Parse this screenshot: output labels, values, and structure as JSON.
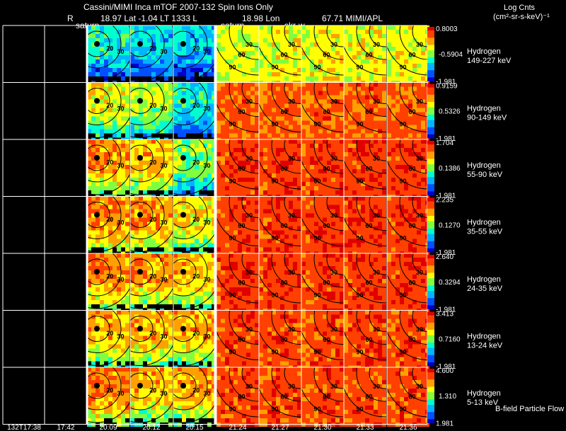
{
  "header": {
    "title_line": "Cassini/MIMI Inca mTOF  2007-132   Spin    Ions Only",
    "info_r": "R",
    "info_lat": "18.97 Lat -1.04 LT 1333 L",
    "info_lon": "18.98 Lon",
    "info_misc": "67.71  MIMI/APL",
    "legend_title": "Log Cnts",
    "legend_units": "(cm²-sr-s-keV)⁻¹"
  },
  "labels": {
    "saturn_1": "saturn",
    "saturn_2": "saturn",
    "skr": "skr-w",
    "footer_flow": "B-field Particle Flow"
  },
  "times": [
    "132T17:38",
    "17:42",
    "20:09",
    "20:12",
    "20:15",
    "21:24",
    "21:27",
    "21:30",
    "21:33",
    "21:36"
  ],
  "chart_data": {
    "type": "heatmap",
    "title": "Cassini/MIMI Inca mTOF 2007-132 Spin Ions Only",
    "x_tick_labels": [
      "132T17:38",
      "17:42",
      "20:09",
      "20:12",
      "20:15",
      "21:24",
      "21:27",
      "21:30",
      "21:33",
      "21:36"
    ],
    "rows": [
      {
        "species": "Hydrogen",
        "energy": "149-227 keV",
        "cbar_max": "0.8003",
        "cbar_mid": "-0.5904",
        "cbar_min": "-1.981",
        "intensity": [
          0,
          0,
          0.35,
          0.3,
          0.28,
          0.6,
          0.62,
          0.64,
          0.63,
          0.62
        ]
      },
      {
        "species": "Hydrogen",
        "energy": "90-149 keV",
        "cbar_max": "0.9159",
        "cbar_mid": "0.5326",
        "cbar_min": "-1.981",
        "intensity": [
          0,
          0,
          0.6,
          0.55,
          0.35,
          0.85,
          0.85,
          0.86,
          0.86,
          0.85
        ]
      },
      {
        "species": "Hydrogen",
        "energy": "55-90 keV",
        "cbar_max": "1.704",
        "cbar_mid": "0.1386",
        "cbar_min": "-1.981",
        "intensity": [
          0,
          0,
          0.75,
          0.7,
          0.5,
          0.9,
          0.9,
          0.9,
          0.9,
          0.9
        ]
      },
      {
        "species": "Hydrogen",
        "energy": "35-55 keV",
        "cbar_max": "2.235",
        "cbar_mid": "0.1270",
        "cbar_min": "-1.981",
        "intensity": [
          0,
          0,
          0.78,
          0.75,
          0.65,
          0.9,
          0.9,
          0.9,
          0.9,
          0.9
        ]
      },
      {
        "species": "Hydrogen",
        "energy": "24-35 keV",
        "cbar_max": "2.640",
        "cbar_mid": "0.3294",
        "cbar_min": "-1.981",
        "intensity": [
          0,
          0,
          0.78,
          0.75,
          0.7,
          0.9,
          0.9,
          0.9,
          0.9,
          0.9
        ]
      },
      {
        "species": "Hydrogen",
        "energy": "13-24 keV",
        "cbar_max": "3.413",
        "cbar_mid": "0.7160",
        "cbar_min": "-1.981",
        "intensity": [
          0,
          0,
          0.7,
          0.72,
          0.72,
          0.88,
          0.88,
          0.88,
          0.88,
          0.88
        ]
      },
      {
        "species": "Hydrogen",
        "energy": "5-13 keV",
        "cbar_max": "4.600",
        "cbar_mid": "1.310",
        "cbar_min": "1.981",
        "intensity": [
          0,
          0,
          0.8,
          0.7,
          0.72,
          0.88,
          0.88,
          0.88,
          0.88,
          0.88
        ]
      }
    ],
    "contour_labels_a": [
      "20",
      "30",
      "60"
    ],
    "contour_labels_b": [
      "30",
      "60",
      "90"
    ],
    "colorscale": [
      "#0000c8",
      "#0050ff",
      "#00b4ff",
      "#00ffd0",
      "#80ff40",
      "#ffff00",
      "#ffa000",
      "#ff4000",
      "#e00000"
    ]
  }
}
